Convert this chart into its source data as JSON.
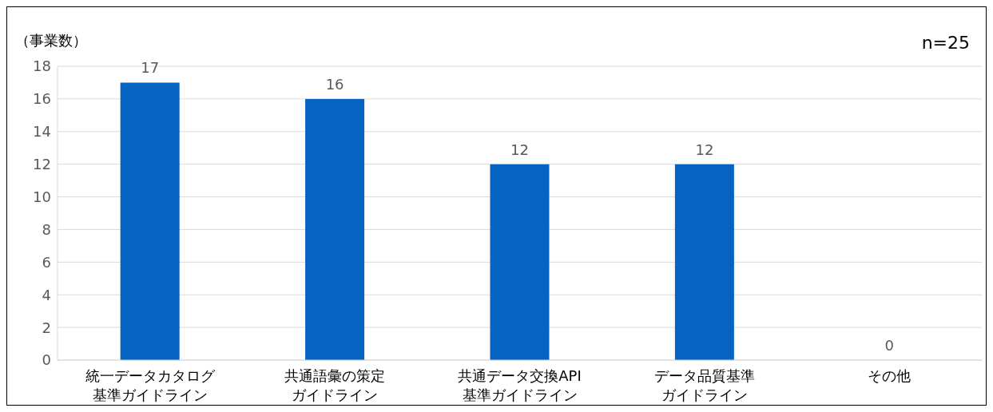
{
  "chart_data": {
    "type": "bar",
    "ylabel": "（事業数）",
    "annotations": [
      "n=25"
    ],
    "categories": [
      "統一データカタログ基準ガイドライン",
      "共通語彙の策定ガイドライン",
      "共通データ交換API基準ガイドライン",
      "データ品質基準ガイドライン",
      "その他"
    ],
    "values": [
      17,
      16,
      12,
      12,
      0
    ],
    "color": "#0563c1",
    "ylim": [
      0,
      18
    ],
    "yticks": [
      0,
      2,
      4,
      6,
      8,
      10,
      12,
      14,
      16,
      18
    ],
    "grid": "y",
    "data_labels": true
  }
}
